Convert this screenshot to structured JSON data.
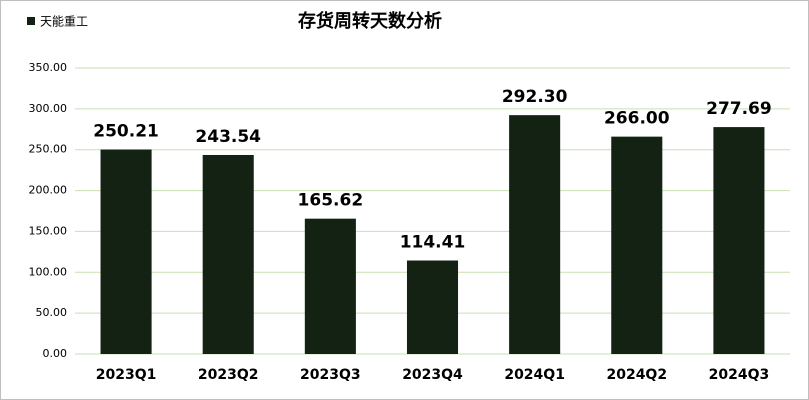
{
  "chart_data": {
    "type": "bar",
    "title": "存货周转天数分析",
    "series": [
      {
        "name": "天能重工",
        "color": "#132213",
        "values": [
          250.21,
          243.54,
          165.62,
          114.41,
          292.3,
          266,
          277.69
        ],
        "value_labels": [
          "250.21",
          "243.54",
          "165.62",
          "114.41",
          "292.30",
          "266.00",
          "277.69"
        ]
      }
    ],
    "categories": [
      "2023Q1",
      "2023Q2",
      "2023Q3",
      "2023Q4",
      "2024Q1",
      "2024Q2",
      "2024Q3"
    ],
    "ylim": [
      0,
      350
    ],
    "yticks": [
      {
        "value": 0,
        "label": "0.00"
      },
      {
        "value": 50,
        "label": "50.00"
      },
      {
        "value": 100,
        "label": "100.00"
      },
      {
        "value": 150,
        "label": "150.00"
      },
      {
        "value": 200,
        "label": "200.00"
      },
      {
        "value": 250,
        "label": "250.00"
      },
      {
        "value": 300,
        "label": "300.00"
      },
      {
        "value": 350,
        "label": "350.00"
      }
    ],
    "grid": true,
    "legend": "top-left"
  }
}
